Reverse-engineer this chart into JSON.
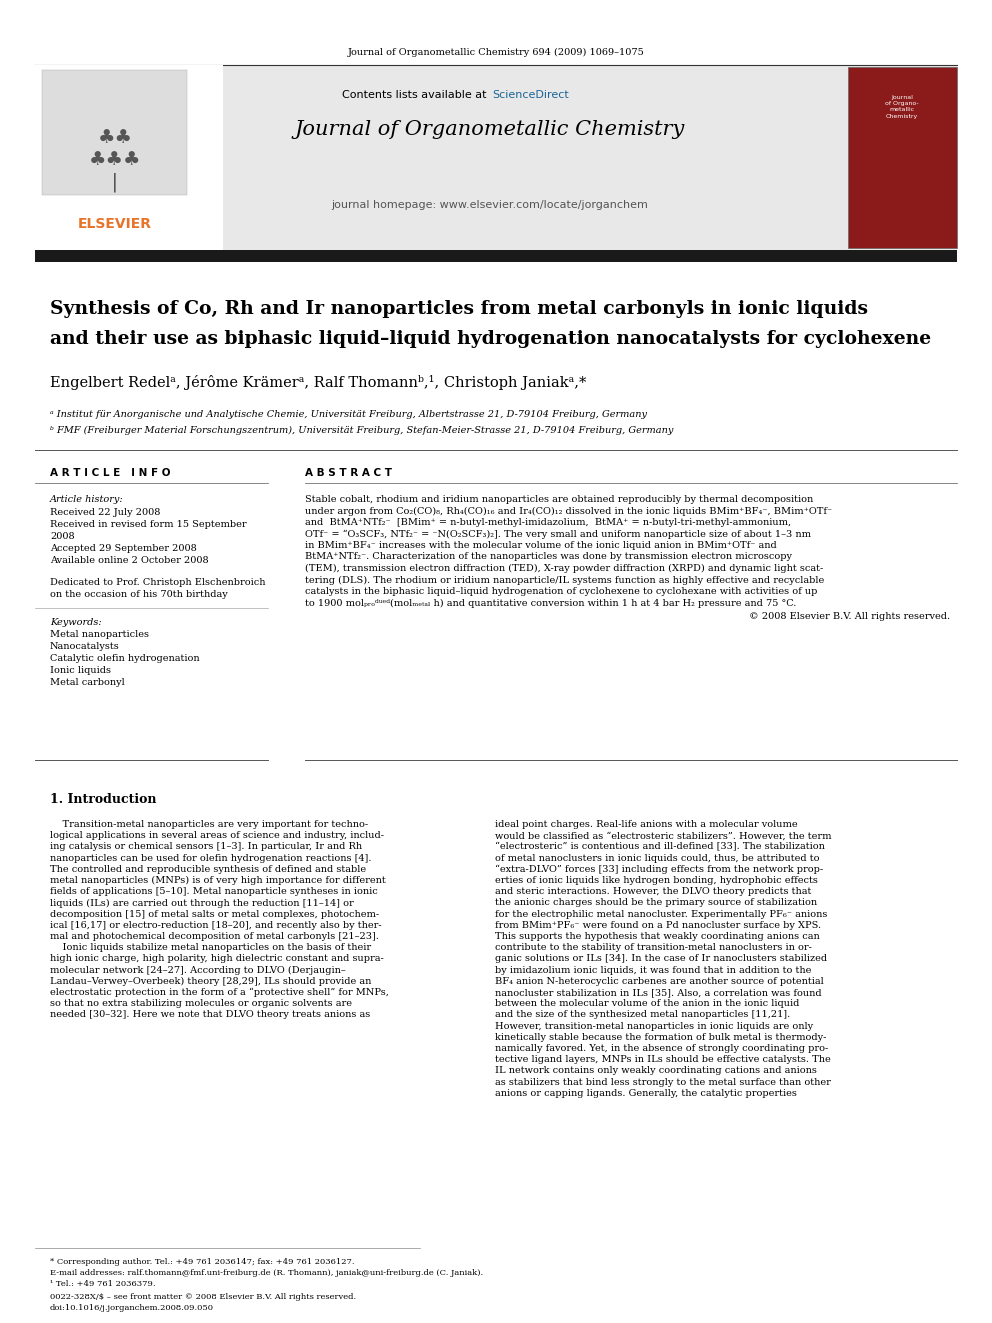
{
  "page_width": 9.92,
  "page_height": 13.23,
  "background_color": "#ffffff",
  "journal_ref": "Journal of Organometallic Chemistry 694 (2009) 1069–1075",
  "sciencedirect_text": "ScienceDirect",
  "journal_name": "Journal of Organometallic Chemistry",
  "journal_homepage": "journal homepage: www.elsevier.com/locate/jorganchem",
  "title_line1": "Synthesis of Co, Rh and Ir nanoparticles from metal carbonyls in ionic liquids",
  "title_line2": "and their use as biphasic liquid–liquid hydrogenation nanocatalysts for cyclohexene",
  "authors": "Engelbert Redelᵃ, Jérôme Krämerᵃ, Ralf Thomannᵇ,¹, Christoph Janiakᵃ,*",
  "affil_a": "ᵃ Institut für Anorganische und Analytische Chemie, Universität Freiburg, Albertstrasse 21, D-79104 Freiburg, Germany",
  "affil_b": "ᵇ FMF (Freiburger Material Forschungszentrum), Universität Freiburg, Stefan-Meier-Strasse 21, D-79104 Freiburg, Germany",
  "article_info_header": "A R T I C L E   I N F O",
  "abstract_header": "A B S T R A C T",
  "article_history_label": "Article history:",
  "received_line": "Received 22 July 2008",
  "revised_line1": "Received in revised form 15 September",
  "revised_line2": "2008",
  "accepted_line": "Accepted 29 September 2008",
  "available_line": "Available online 2 October 2008",
  "dedicated_line1": "Dedicated to Prof. Christoph Elschenbroich",
  "dedicated_line2": "on the occasion of his 70th birthday",
  "keywords_label": "Keywords:",
  "keywords": [
    "Metal nanoparticles",
    "Nanocatalysts",
    "Catalytic olefin hydrogenation",
    "Ionic liquids",
    "Metal carbonyl"
  ],
  "abstract_lines": [
    "Stable cobalt, rhodium and iridium nanoparticles are obtained reproducibly by thermal decomposition",
    "under argon from Co₂(CO)₈, Rh₄(CO)₁₆ and Ir₄(CO)₁₂ dissolved in the ionic liquids BMim⁺BF₄⁻, BMim⁺OTf⁻",
    "and  BtMA⁺NTf₂⁻  [BMim⁺ = n-butyl-methyl-imidazolium,  BtMA⁺ = n-butyl-tri-methyl-ammonium,",
    "OTf⁻ = “O₃SCF₃, NTf₂⁻ = ⁻N(O₂SCF₃)₂]. The very small and uniform nanoparticle size of about 1–3 nm",
    "in BMim⁺BF₄⁻ increases with the molecular volume of the ionic liquid anion in BMim⁺OTf⁻ and",
    "BtMA⁺NTf₂⁻. Characterization of the nanoparticles was done by transmission electron microscopy",
    "(TEM), transmission electron diffraction (TED), X-ray powder diffraction (XRPD) and dynamic light scat-",
    "tering (DLS). The rhodium or iridium nanoparticle/IL systems function as highly effective and recyclable",
    "catalysts in the biphasic liquid–liquid hydrogenation of cyclohexene to cyclohexane with activities of up",
    "to 1900 molₚᵣₒᵈᵘᵉᵈ(molₘₑₜₐₗ h) and quantitative conversion within 1 h at 4 bar H₂ pressure and 75 °C."
  ],
  "copyright_line": "© 2008 Elsevier B.V. All rights reserved.",
  "intro_header": "1. Introduction",
  "intro_col1_lines": [
    "    Transition-metal nanoparticles are very important for techno-",
    "logical applications in several areas of science and industry, includ-",
    "ing catalysis or chemical sensors [1–3]. In particular, Ir and Rh",
    "nanoparticles can be used for olefin hydrogenation reactions [4].",
    "The controlled and reproducible synthesis of defined and stable",
    "metal nanoparticles (MNPs) is of very high importance for different",
    "fields of applications [5–10]. Metal nanoparticle syntheses in ionic",
    "liquids (ILs) are carried out through the reduction [11–14] or",
    "decomposition [15] of metal salts or metal complexes, photochem-",
    "ical [16,17] or electro-reduction [18–20], and recently also by ther-",
    "mal and photochemical decomposition of metal carbonyls [21–23].",
    "    Ionic liquids stabilize metal nanoparticles on the basis of their",
    "high ionic charge, high polarity, high dielectric constant and supra-",
    "molecular network [24–27]. According to DLVO (Derjaugin–",
    "Landau–Verwey–Overbeek) theory [28,29], ILs should provide an",
    "electrostatic protection in the form of a “protective shell” for MNPs,",
    "so that no extra stabilizing molecules or organic solvents are",
    "needed [30–32]. Here we note that DLVO theory treats anions as"
  ],
  "intro_col2_lines": [
    "ideal point charges. Real-life anions with a molecular volume",
    "would be classified as “electrosteric stabilizers”. However, the term",
    "“electrosteric” is contentious and ill-defined [33]. The stabilization",
    "of metal nanoclusters in ionic liquids could, thus, be attributed to",
    "“extra-DLVO” forces [33] including effects from the network prop-",
    "erties of ionic liquids like hydrogen bonding, hydrophobic effects",
    "and steric interactions. However, the DLVO theory predicts that",
    "the anionic charges should be the primary source of stabilization",
    "for the electrophilic metal nanocluster. Experimentally PF₆⁻ anions",
    "from BMim⁺PF₆⁻ were found on a Pd nanocluster surface by XPS.",
    "This supports the hypothesis that weakly coordinating anions can",
    "contribute to the stability of transition-metal nanoclusters in or-",
    "ganic solutions or ILs [34]. In the case of Ir nanoclusters stabilized",
    "by imidazolium ionic liquids, it was found that in addition to the",
    "BF₄ anion N-heterocyclic carbenes are another source of potential",
    "nanocluster stabilization in ILs [35]. Also, a correlation was found",
    "between the molecular volume of the anion in the ionic liquid",
    "and the size of the synthesized metal nanoparticles [11,21].",
    "However, transition-metal nanoparticles in ionic liquids are only",
    "kinetically stable because the formation of bulk metal is thermody-",
    "namically favored. Yet, in the absence of strongly coordinating pro-",
    "tective ligand layers, MNPs in ILs should be effective catalysts. The",
    "IL network contains only weakly coordinating cations and anions",
    "as stabilizers that bind less strongly to the metal surface than other",
    "anions or capping ligands. Generally, the catalytic properties"
  ],
  "footer_line1": "* Corresponding author. Tel.: +49 761 2036147; fax: +49 761 2036127.",
  "footer_line2": "E-mail addresses: ralf.thomann@fmf.uni-freiburg.de (R. Thomann), janiak@uni-freiburg.de (C. Janiak).",
  "footer_line3": "¹ Tel.: +49 761 2036379.",
  "footer_line4": "0022-328X/$ – see front matter © 2008 Elsevier B.V. All rights reserved.",
  "footer_line5": "doi:10.1016/j.jorganchem.2008.09.050",
  "header_bg_color": "#e8e8e8",
  "thick_bar_color": "#1a1a1a",
  "elsevier_color": "#e8732a",
  "sciencedirect_color": "#1a6496",
  "title_color": "#000000",
  "body_text_color": "#000000"
}
